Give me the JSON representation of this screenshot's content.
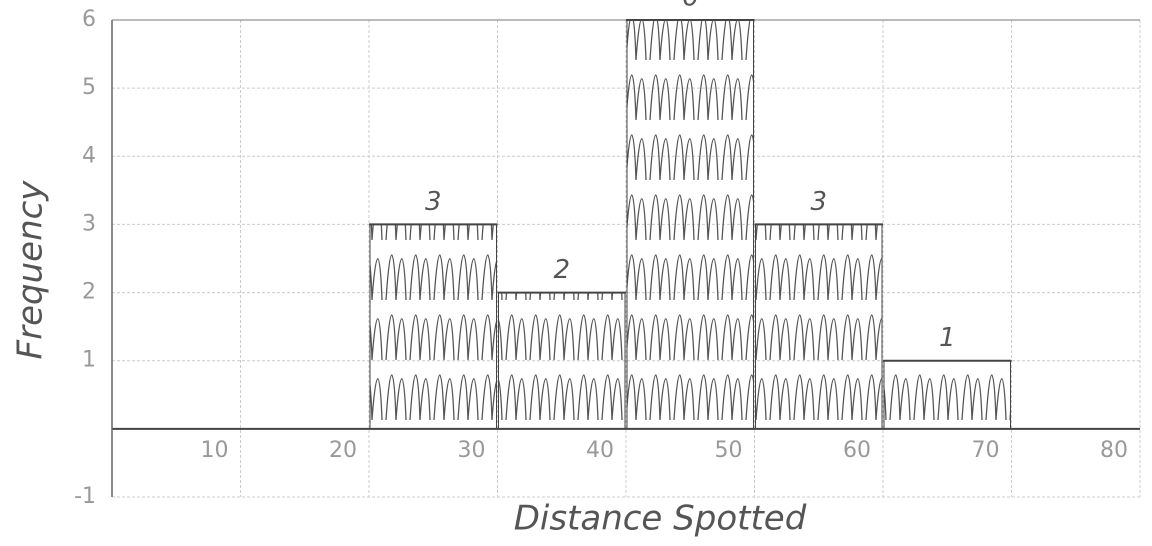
{
  "chart_data": {
    "type": "histogram",
    "x_label": "Distance Spotted",
    "y_label": "Frequency",
    "bins": [
      20,
      30,
      40,
      50,
      60,
      70
    ],
    "values": [
      3,
      2,
      6,
      3,
      1
    ],
    "xlim": [
      0,
      80
    ],
    "xticks": [
      10,
      20,
      30,
      40,
      50,
      60,
      70,
      80
    ],
    "ylim": [
      -1,
      6
    ],
    "yticks": [
      -1,
      1,
      2,
      3,
      4,
      5,
      6
    ],
    "grid": true,
    "color": "#444444"
  }
}
